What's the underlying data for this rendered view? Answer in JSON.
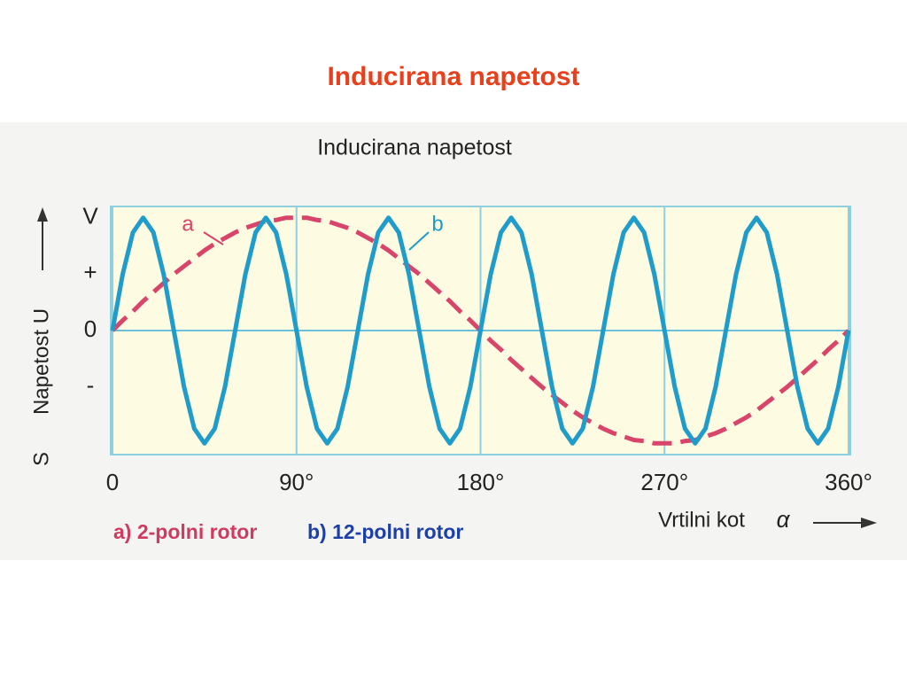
{
  "title": "Inducirana napetost",
  "chart_data": {
    "type": "line",
    "title": "Inducirana napetost",
    "x": [
      0,
      5,
      10,
      15,
      20,
      25,
      30,
      35,
      40,
      45,
      50,
      55,
      60,
      65,
      70,
      75,
      80,
      85,
      90,
      95,
      100,
      105,
      110,
      115,
      120,
      125,
      130,
      135,
      140,
      145,
      150,
      155,
      160,
      165,
      170,
      175,
      180,
      185,
      190,
      195,
      200,
      205,
      210,
      215,
      220,
      225,
      230,
      235,
      240,
      245,
      250,
      255,
      260,
      265,
      270,
      275,
      280,
      285,
      290,
      295,
      300,
      305,
      310,
      315,
      320,
      325,
      330,
      335,
      340,
      345,
      350,
      355,
      360
    ],
    "series": [
      {
        "name": "a) 2-polni rotor",
        "color": "#d9456a",
        "style": "dashed",
        "values": [
          0,
          0.09,
          0.17,
          0.26,
          0.34,
          0.42,
          0.5,
          0.57,
          0.64,
          0.71,
          0.77,
          0.82,
          0.87,
          0.91,
          0.94,
          0.97,
          0.98,
          1,
          1,
          1,
          0.98,
          0.97,
          0.94,
          0.91,
          0.87,
          0.82,
          0.77,
          0.71,
          0.64,
          0.57,
          0.5,
          0.42,
          0.34,
          0.26,
          0.17,
          0.09,
          0,
          -0.09,
          -0.17,
          -0.26,
          -0.34,
          -0.42,
          -0.5,
          -0.57,
          -0.64,
          -0.71,
          -0.77,
          -0.82,
          -0.87,
          -0.91,
          -0.94,
          -0.97,
          -0.98,
          -1,
          -1,
          -1,
          -0.98,
          -0.97,
          -0.94,
          -0.91,
          -0.87,
          -0.82,
          -0.77,
          -0.71,
          -0.64,
          -0.57,
          -0.5,
          -0.42,
          -0.34,
          -0.26,
          -0.17,
          -0.09,
          0
        ]
      },
      {
        "name": "b) 12-polni rotor",
        "color": "#1f9cc9",
        "style": "solid",
        "values": [
          0,
          0.5,
          0.87,
          1,
          0.87,
          0.5,
          0,
          -0.5,
          -0.87,
          -1,
          -0.87,
          -0.5,
          0,
          0.5,
          0.87,
          1,
          0.87,
          0.5,
          0,
          -0.5,
          -0.87,
          -1,
          -0.87,
          -0.5,
          0,
          0.5,
          0.87,
          1,
          0.87,
          0.5,
          0,
          -0.5,
          -0.87,
          -1,
          -0.87,
          -0.5,
          0,
          0.5,
          0.87,
          1,
          0.87,
          0.5,
          0,
          -0.5,
          -0.87,
          -1,
          -0.87,
          -0.5,
          0,
          0.5,
          0.87,
          1,
          0.87,
          0.5,
          0,
          -0.5,
          -0.87,
          -1,
          -0.87,
          -0.5,
          0,
          0.5,
          0.87,
          1,
          0.87,
          0.5,
          0,
          -0.5,
          -0.87,
          -1,
          -0.87,
          -0.5,
          0
        ]
      }
    ],
    "annotations": [
      "a",
      "b"
    ],
    "xlim": [
      0,
      360
    ],
    "xticks": [
      0,
      {
        "value": 90,
        "label": "90°"
      },
      {
        "value": 180,
        "label": "180°"
      },
      {
        "value": 270,
        "label": "270°"
      },
      {
        "value": 360,
        "label": "360°"
      }
    ],
    "ylim": [
      -1.1,
      1.1
    ],
    "yticks": [
      {
        "value": 1,
        "label": "V"
      },
      {
        "value": 0.5,
        "label": "+"
      },
      0,
      {
        "value": -0.5,
        "label": "-"
      }
    ],
    "y_label": "Napetost U",
    "y_label_extra": "S",
    "x_label": "Vrtilni kot",
    "x_symbol": "α",
    "grid": true
  }
}
